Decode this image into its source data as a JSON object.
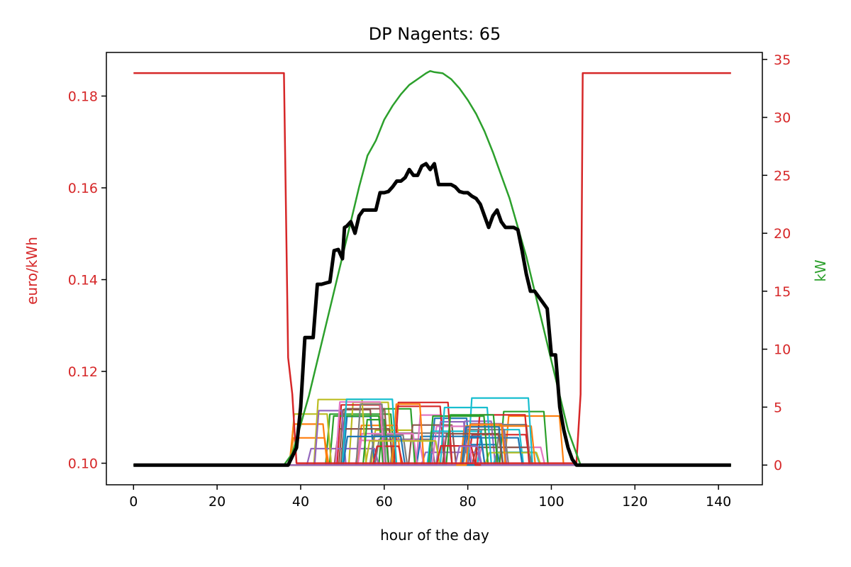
{
  "chart_data": {
    "type": "line",
    "title": "DP Nagents: 65",
    "xlabel": "hour of the day",
    "ylabel_left": "euro/kWh",
    "ylabel_right": "kW",
    "xlim": [
      -6.5,
      150.5
    ],
    "x_ticks": [
      0,
      20,
      40,
      60,
      80,
      100,
      120,
      140
    ],
    "ylim_left": [
      0.0953,
      0.1895
    ],
    "y_ticks_left": [
      0.1,
      0.12,
      0.14,
      0.16,
      0.18
    ],
    "ylim_right": [
      -1.7,
      35.6
    ],
    "y_ticks_right": [
      0,
      5,
      10,
      15,
      20,
      25,
      30,
      35
    ],
    "grid": false,
    "colors": {
      "price": "#d62728",
      "pv": "#2ca02c",
      "total": "#000000",
      "agents": [
        "#1f77b4",
        "#ff7f0e",
        "#2ca02c",
        "#d62728",
        "#9467bd",
        "#8c564b",
        "#e377c2",
        "#7f7f7f",
        "#bcbd22",
        "#17becf"
      ]
    },
    "series": [
      {
        "axis": "left",
        "color": "#d62728",
        "width": 2.5,
        "points": [
          [
            0,
            0.185
          ],
          [
            36,
            0.185
          ],
          [
            37,
            0.123
          ],
          [
            38,
            0.115
          ],
          [
            39,
            0.1
          ],
          [
            106,
            0.1
          ],
          [
            107,
            0.115
          ],
          [
            107.5,
            0.185
          ],
          [
            143,
            0.185
          ]
        ]
      },
      {
        "axis": "right",
        "color": "#2ca02c",
        "width": 2.5,
        "points": [
          [
            0,
            0
          ],
          [
            36,
            0
          ],
          [
            38,
            1
          ],
          [
            40,
            3.5
          ],
          [
            42,
            6
          ],
          [
            44,
            9
          ],
          [
            46,
            12
          ],
          [
            48,
            15
          ],
          [
            50,
            18
          ],
          [
            52,
            21
          ],
          [
            54,
            24
          ],
          [
            56,
            26.7
          ],
          [
            58,
            28
          ],
          [
            60,
            29.8
          ],
          [
            62,
            31
          ],
          [
            64,
            32
          ],
          [
            66,
            32.8
          ],
          [
            68,
            33.3
          ],
          [
            70,
            33.8
          ],
          [
            71,
            34
          ],
          [
            72,
            33.9
          ],
          [
            74,
            33.8
          ],
          [
            76,
            33.3
          ],
          [
            78,
            32.5
          ],
          [
            80,
            31.5
          ],
          [
            82,
            30.3
          ],
          [
            84,
            28.8
          ],
          [
            86,
            27
          ],
          [
            88,
            25
          ],
          [
            90,
            23
          ],
          [
            92,
            20.5
          ],
          [
            94,
            18
          ],
          [
            96,
            15
          ],
          [
            98,
            12
          ],
          [
            100,
            9
          ],
          [
            102,
            6
          ],
          [
            104,
            3
          ],
          [
            106,
            1
          ],
          [
            107,
            0
          ],
          [
            143,
            0
          ]
        ]
      },
      {
        "axis": "right",
        "color": "#000000",
        "width": 5,
        "points": [
          [
            0,
            0
          ],
          [
            37,
            0
          ],
          [
            39,
            1.5
          ],
          [
            40,
            5
          ],
          [
            41,
            11
          ],
          [
            42,
            11
          ],
          [
            43,
            11
          ],
          [
            44,
            15.6
          ],
          [
            45,
            15.6
          ],
          [
            46,
            15.7
          ],
          [
            47,
            15.8
          ],
          [
            48,
            18.5
          ],
          [
            49,
            18.6
          ],
          [
            50,
            17.8
          ],
          [
            50.5,
            20.5
          ],
          [
            51,
            20.6
          ],
          [
            52,
            21
          ],
          [
            53,
            20
          ],
          [
            54,
            21.5
          ],
          [
            55,
            22
          ],
          [
            56,
            22
          ],
          [
            57,
            22
          ],
          [
            58,
            22
          ],
          [
            59,
            23.5
          ],
          [
            60,
            23.5
          ],
          [
            61,
            23.6
          ],
          [
            62,
            24
          ],
          [
            63,
            24.5
          ],
          [
            64,
            24.5
          ],
          [
            65,
            24.8
          ],
          [
            66,
            25.5
          ],
          [
            67,
            25
          ],
          [
            68,
            25
          ],
          [
            69,
            25.8
          ],
          [
            70,
            26
          ],
          [
            71,
            25.5
          ],
          [
            72,
            26
          ],
          [
            73,
            24.2
          ],
          [
            74,
            24.2
          ],
          [
            75,
            24.2
          ],
          [
            76,
            24.2
          ],
          [
            77,
            24
          ],
          [
            78,
            23.6
          ],
          [
            79,
            23.5
          ],
          [
            80,
            23.5
          ],
          [
            81,
            23.2
          ],
          [
            82,
            23
          ],
          [
            83,
            22.5
          ],
          [
            84,
            21.5
          ],
          [
            85,
            20.5
          ],
          [
            86,
            21.5
          ],
          [
            87,
            22
          ],
          [
            88,
            21
          ],
          [
            89,
            20.5
          ],
          [
            90,
            20.5
          ],
          [
            91,
            20.5
          ],
          [
            92,
            20.3
          ],
          [
            93,
            18.5
          ],
          [
            94,
            16.5
          ],
          [
            95,
            15
          ],
          [
            96,
            15
          ],
          [
            97,
            14.5
          ],
          [
            98,
            14
          ],
          [
            99,
            13.5
          ],
          [
            100,
            9.5
          ],
          [
            101,
            9.5
          ],
          [
            102,
            5
          ],
          [
            103,
            3
          ],
          [
            104,
            1.5
          ],
          [
            105,
            0.5
          ],
          [
            106,
            0
          ],
          [
            143,
            0
          ]
        ]
      }
    ]
  }
}
